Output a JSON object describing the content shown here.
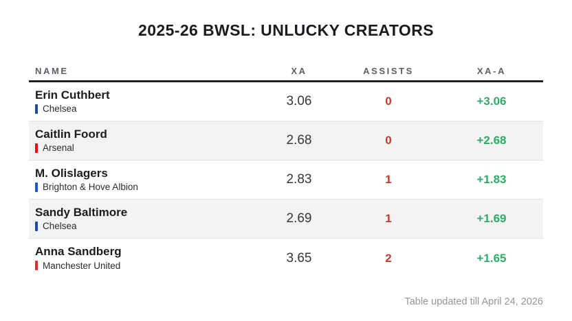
{
  "chart_data": {
    "type": "table",
    "title": "2025-26 BWSL: UNLUCKY CREATORS",
    "columns": [
      "NAME",
      "XA",
      "ASSISTS",
      "XA-A"
    ],
    "rows": [
      {
        "name": "Erin Cuthbert",
        "team": "Chelsea",
        "team_color": "#1d4ba4",
        "xa": "3.06",
        "assists": "0",
        "xa_minus_assists": "+3.06"
      },
      {
        "name": "Caitlin Foord",
        "team": "Arsenal",
        "team_color": "#e00d15",
        "xa": "2.68",
        "assists": "0",
        "xa_minus_assists": "+2.68"
      },
      {
        "name": "M. Olislagers",
        "team": "Brighton & Hove Albion",
        "team_color": "#2256c4",
        "xa": "2.83",
        "assists": "1",
        "xa_minus_assists": "+1.83"
      },
      {
        "name": "Sandy Baltimore",
        "team": "Chelsea",
        "team_color": "#1d4ba4",
        "xa": "2.69",
        "assists": "1",
        "xa_minus_assists": "+1.69"
      },
      {
        "name": "Anna Sandberg",
        "team": "Manchester United",
        "team_color": "#d0342c",
        "xa": "3.65",
        "assists": "2",
        "xa_minus_assists": "+1.65"
      }
    ],
    "footnote": "Table updated till April 24, 2026"
  },
  "colors": {
    "assists_red": "#c0392b",
    "delta_green": "#2eac66",
    "title_text": "#1b1b1f",
    "header_text": "#5b5e65",
    "row_stripe": "#f3f3f4"
  }
}
